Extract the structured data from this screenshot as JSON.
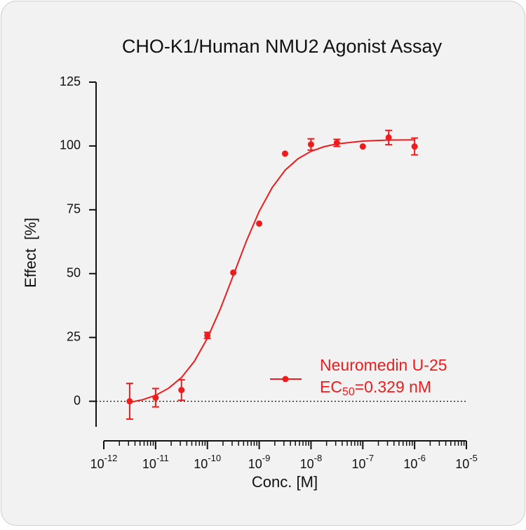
{
  "chart_data": {
    "type": "dose-response",
    "title": "CHO-K1/Human NMU2 Agonist Assay",
    "xlabel": "Conc. [M]",
    "ylabel": "Effect  [%]",
    "xscale": "log",
    "xlim": [
      1e-12,
      1e-05
    ],
    "xticks": [
      {
        "value": 1e-12,
        "label": "10",
        "sup": "-12"
      },
      {
        "value": 1e-11,
        "label": "10",
        "sup": "-11"
      },
      {
        "value": 1e-10,
        "label": "10",
        "sup": "-10"
      },
      {
        "value": 1e-09,
        "label": "10",
        "sup": "-9"
      },
      {
        "value": 1e-08,
        "label": "10",
        "sup": "-8"
      },
      {
        "value": 1e-07,
        "label": "10",
        "sup": "-7"
      },
      {
        "value": 1e-06,
        "label": "10",
        "sup": "-6"
      },
      {
        "value": 1e-05,
        "label": "10",
        "sup": "-5"
      }
    ],
    "ylim": [
      -10,
      125
    ],
    "yticks": [
      0,
      25,
      50,
      75,
      100,
      125
    ],
    "zero_line": true,
    "series": [
      {
        "name": "Neuromedin U-25",
        "annotation": [
          "EC",
          "50",
          "=0.329 nM"
        ],
        "color": "#ee1c1c",
        "x": [
          3.16e-12,
          1e-11,
          3.16e-11,
          1e-10,
          3.16e-10,
          1e-09,
          3.16e-09,
          1e-08,
          3.16e-08,
          1e-07,
          3.16e-07,
          1e-06
        ],
        "values": [
          0,
          1.4,
          4.4,
          25.8,
          50.4,
          69.6,
          97.0,
          100.6,
          101.2,
          99.8,
          103.3,
          99.8
        ],
        "errors": [
          7,
          3.6,
          4,
          1.2,
          0,
          0,
          0,
          2.2,
          1.4,
          0,
          2.8,
          3.3
        ],
        "curve": {
          "x": [
            3.16e-12,
            5.62e-12,
            1e-11,
            1.78e-11,
            3.16e-11,
            5.62e-11,
            1e-10,
            1.78e-10,
            3.16e-10,
            5.62e-10,
            1e-09,
            1.78e-09,
            3.16e-09,
            5.62e-09,
            1e-08,
            1.78e-08,
            3.16e-08,
            1e-07,
            3.16e-07,
            1e-06
          ],
          "values": [
            -0.4,
            0.6,
            2.3,
            5.1,
            9.3,
            15.7,
            24.7,
            36.2,
            49.3,
            62.6,
            74.4,
            83.7,
            90.5,
            95.0,
            97.9,
            99.7,
            100.8,
            101.9,
            102.3,
            102.4
          ]
        }
      }
    ]
  }
}
